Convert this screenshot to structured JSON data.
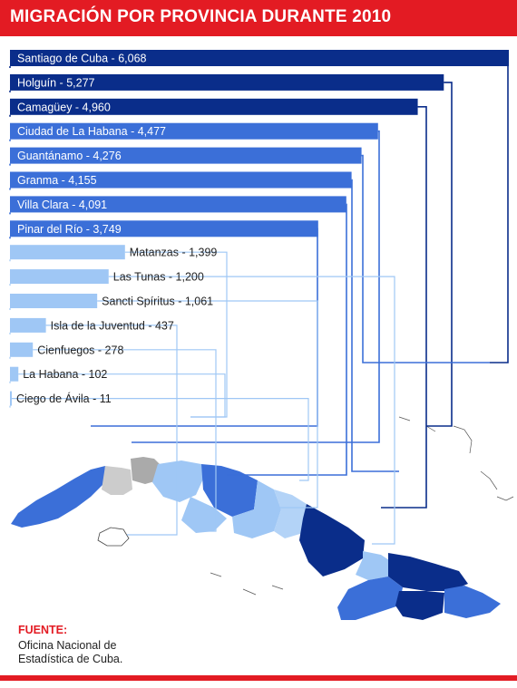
{
  "header": {
    "title": "MIGRACIÓN POR PROVINCIA DURANTE 2010"
  },
  "source": {
    "label": "FUENTE:",
    "text": "Oficina Nacional de Estadística de Cuba."
  },
  "colors": {
    "accent": "#e31b23",
    "dark": "#0a2d8a",
    "mid": "#3b6fd8",
    "light": "#9fc7f5",
    "neutral": "#cccccc"
  },
  "chart_data": {
    "type": "bar",
    "orientation": "horizontal",
    "title": "MIGRACIÓN POR PROVINCIA DURANTE 2010",
    "categories": [
      "Santiago de Cuba",
      "Holguín",
      "Camagüey",
      "Ciudad de La Habana",
      "Guantánamo",
      "Granma",
      "Villa Clara",
      "Pinar del Río",
      "Matanzas",
      "Las Tunas",
      "Sancti Spíritus",
      "Isla de la Juventud",
      "Cienfuegos",
      "La Habana",
      "Ciego de Ávila"
    ],
    "values": [
      6068,
      5277,
      4960,
      4477,
      4276,
      4155,
      4091,
      3749,
      1399,
      1200,
      1061,
      437,
      278,
      102,
      11
    ],
    "labels": [
      "Santiago de Cuba - 6,068",
      "Holguín - 5,277",
      "Camagüey - 4,960",
      "Ciudad de La Habana - 4,477",
      "Guantánamo - 4,276",
      "Granma - 4,155",
      "Villa Clara - 4,091",
      "Pinar del Río - 3,749",
      "Matanzas - 1,399",
      "Las Tunas - 1,200",
      "Sancti Spíritus - 1,061",
      "Isla de la Juventud - 437",
      "Cienfuegos - 278",
      "La Habana - 102",
      "Ciego de Ávila - 11"
    ],
    "tiers": [
      "dark",
      "dark",
      "dark",
      "mid",
      "mid",
      "mid",
      "mid",
      "mid",
      "light",
      "light",
      "light",
      "light",
      "light",
      "light",
      "light"
    ],
    "xlim": [
      0,
      6068
    ],
    "grid": false,
    "legend": "none"
  }
}
